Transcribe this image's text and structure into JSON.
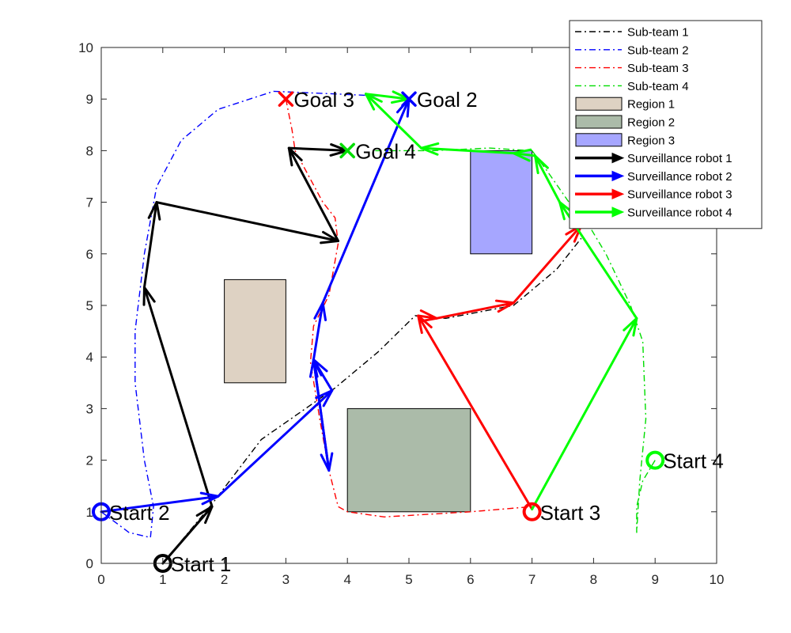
{
  "chart_data": {
    "type": "line",
    "xlim": [
      0,
      10
    ],
    "ylim": [
      0,
      10
    ],
    "x_ticks": [
      "0",
      "1",
      "2",
      "3",
      "4",
      "5",
      "6",
      "7",
      "8",
      "9",
      "10"
    ],
    "y_ticks": [
      "0",
      "1",
      "2",
      "3",
      "4",
      "5",
      "6",
      "7",
      "8",
      "9",
      "10"
    ],
    "grid": false,
    "legend_position": "top-right",
    "regions": [
      {
        "name": "Region 1",
        "color": "#ded2c3",
        "x": [
          2,
          3
        ],
        "y": [
          3.5,
          5.5
        ]
      },
      {
        "name": "Region 2",
        "color": "#abbba9",
        "x": [
          4,
          6
        ],
        "y": [
          1,
          3
        ]
      },
      {
        "name": "Region 3",
        "color": "#a6a6ff",
        "x": [
          6,
          7
        ],
        "y": [
          6,
          8
        ]
      }
    ],
    "subteams": [
      {
        "name": "Sub-team 1",
        "color": "#000000",
        "path": [
          [
            1,
            0
          ],
          [
            1.8,
            1.15
          ],
          [
            2.6,
            2.4
          ],
          [
            3.8,
            3.4
          ],
          [
            4.5,
            4.1
          ],
          [
            5.1,
            4.8
          ],
          [
            5.6,
            4.75
          ],
          [
            6.7,
            5.0
          ],
          [
            7.4,
            5.7
          ],
          [
            7.8,
            6.3
          ]
        ]
      },
      {
        "name": "Sub-team 2",
        "color": "#0000ff",
        "path": [
          [
            0,
            1
          ],
          [
            0.45,
            0.6
          ],
          [
            0.8,
            0.5
          ],
          [
            0.85,
            1.1
          ],
          [
            0.7,
            2.0
          ],
          [
            0.55,
            3.5
          ],
          [
            0.55,
            4.5
          ],
          [
            0.7,
            6.0
          ],
          [
            0.9,
            7.3
          ],
          [
            1.3,
            8.2
          ],
          [
            1.9,
            8.8
          ],
          [
            2.8,
            9.15
          ],
          [
            3.8,
            9.1
          ],
          [
            4.7,
            9.05
          ]
        ]
      },
      {
        "name": "Sub-team 3",
        "color": "#ff0000",
        "path": [
          [
            3,
            9
          ],
          [
            3.1,
            8.4
          ],
          [
            3.15,
            8.0
          ],
          [
            3.6,
            7.0
          ],
          [
            3.8,
            6.7
          ],
          [
            3.85,
            6.2
          ],
          [
            3.7,
            5.2
          ],
          [
            3.45,
            4.6
          ],
          [
            3.4,
            3.9
          ],
          [
            3.55,
            2.8
          ],
          [
            3.7,
            1.8
          ],
          [
            3.85,
            1.1
          ],
          [
            4,
            1.0
          ],
          [
            4.6,
            0.9
          ],
          [
            6.0,
            1.0
          ],
          [
            7.0,
            1.1
          ]
        ]
      },
      {
        "name": "Sub-team 4",
        "color": "#00dd00",
        "path": [
          [
            9,
            2
          ],
          [
            8.8,
            1.6
          ],
          [
            8.7,
            1.1
          ],
          [
            8.7,
            0.6
          ],
          [
            8.75,
            1.6
          ],
          [
            8.85,
            2.8
          ],
          [
            8.8,
            4.3
          ],
          [
            8.6,
            5.0
          ],
          [
            8.2,
            6.0
          ],
          [
            7.9,
            6.6
          ],
          [
            7.6,
            7.0
          ],
          [
            7.25,
            7.6
          ],
          [
            7,
            8.0
          ],
          [
            6.3,
            8.05
          ],
          [
            5.4,
            8.0
          ],
          [
            4.4,
            8.0
          ]
        ]
      }
    ],
    "robots": [
      {
        "name": "Surveillance robot 1",
        "color": "#000000",
        "path": [
          [
            1,
            0
          ],
          [
            1.8,
            1.1
          ],
          [
            0.7,
            5.35
          ],
          [
            0.9,
            7.0
          ],
          [
            3.85,
            6.25
          ],
          [
            3.05,
            8.05
          ],
          [
            4,
            8.0
          ]
        ]
      },
      {
        "name": "Surveillance robot 2",
        "color": "#0000ff",
        "path": [
          [
            0,
            1
          ],
          [
            1.9,
            1.3
          ],
          [
            3.75,
            3.35
          ],
          [
            3.45,
            3.95
          ],
          [
            3.7,
            1.8
          ],
          [
            3.45,
            3.95
          ],
          [
            3.6,
            5.05
          ],
          [
            5,
            9.0
          ]
        ]
      },
      {
        "name": "Surveillance robot 3",
        "color": "#ff0000",
        "path": [
          [
            7,
            1.05
          ],
          [
            5.15,
            4.8
          ],
          [
            5.45,
            4.75
          ],
          [
            6.7,
            5.05
          ],
          [
            7.8,
            6.55
          ]
        ]
      },
      {
        "name": "Surveillance robot 4",
        "color": "#00ff00",
        "path": [
          [
            7,
            1.05
          ],
          [
            8.7,
            4.75
          ],
          [
            7.45,
            7.0
          ],
          [
            7.05,
            7.9
          ],
          [
            6.7,
            7.95
          ],
          [
            5.2,
            8.05
          ],
          [
            4.3,
            9.1
          ],
          [
            5,
            9.0
          ]
        ]
      }
    ],
    "markers": [
      {
        "label": "Start 1",
        "shape": "circle",
        "color": "#000000",
        "x": 1,
        "y": 0
      },
      {
        "label": "Start 2",
        "shape": "circle",
        "color": "#0000ff",
        "x": 0,
        "y": 1
      },
      {
        "label": "Start 3",
        "shape": "circle",
        "color": "#ff0000",
        "x": 7,
        "y": 1
      },
      {
        "label": "Start 4",
        "shape": "circle",
        "color": "#00ff00",
        "x": 9,
        "y": 2
      },
      {
        "label": "Goal 3",
        "shape": "x",
        "color": "#ff0000",
        "x": 3,
        "y": 9
      },
      {
        "label": "Goal 2",
        "shape": "x",
        "color": "#0000ff",
        "x": 5,
        "y": 9
      },
      {
        "label": "Goal 4",
        "shape": "x",
        "color": "#00dd00",
        "x": 4,
        "y": 8
      }
    ],
    "legend": [
      {
        "label": "Sub-team 1",
        "kind": "dashdot",
        "color": "#000000"
      },
      {
        "label": "Sub-team 2",
        "kind": "dashdot",
        "color": "#0000ff"
      },
      {
        "label": "Sub-team 3",
        "kind": "dashdot",
        "color": "#ff0000"
      },
      {
        "label": "Sub-team 4",
        "kind": "dashdot",
        "color": "#00dd00"
      },
      {
        "label": "Region 1",
        "kind": "patch",
        "color": "#ded2c3"
      },
      {
        "label": "Region 2",
        "kind": "patch",
        "color": "#abbba9"
      },
      {
        "label": "Region 3",
        "kind": "patch",
        "color": "#a6a6ff"
      },
      {
        "label": "Surveillance robot 1",
        "kind": "arrow",
        "color": "#000000"
      },
      {
        "label": "Surveillance robot 2",
        "kind": "arrow",
        "color": "#0000ff"
      },
      {
        "label": "Surveillance robot 3",
        "kind": "arrow",
        "color": "#ff0000"
      },
      {
        "label": "Surveillance robot 4",
        "kind": "arrow",
        "color": "#00ff00"
      }
    ]
  }
}
